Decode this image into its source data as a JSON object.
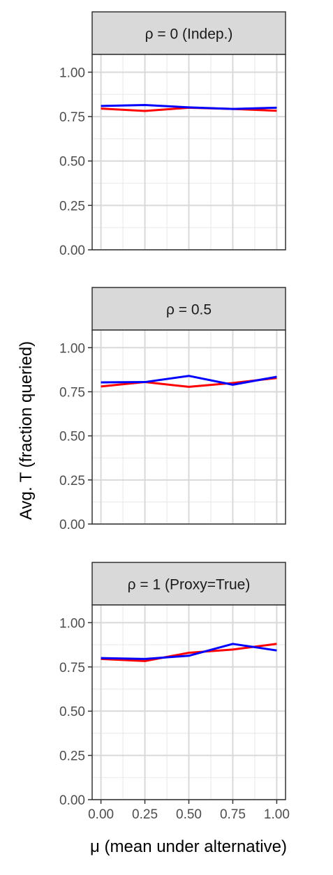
{
  "chart_data": [
    {
      "type": "line",
      "facet_label": "ρ = 0 (Indep.)",
      "x": [
        0.0,
        0.25,
        0.5,
        0.75,
        1.0
      ],
      "series": [
        {
          "color": "#ff0000",
          "values": [
            0.795,
            0.782,
            0.8,
            0.793,
            0.783
          ]
        },
        {
          "color": "#0000ff",
          "values": [
            0.81,
            0.815,
            0.802,
            0.793,
            0.8
          ]
        }
      ],
      "ylim": [
        0,
        1.1
      ],
      "xlim": [
        -0.05,
        1.05
      ]
    },
    {
      "type": "line",
      "facet_label": "ρ = 0.5",
      "x": [
        0.0,
        0.25,
        0.5,
        0.75,
        1.0
      ],
      "series": [
        {
          "color": "#ff0000",
          "values": [
            0.78,
            0.805,
            0.778,
            0.8,
            0.828
          ]
        },
        {
          "color": "#0000ff",
          "values": [
            0.803,
            0.805,
            0.84,
            0.79,
            0.835
          ]
        }
      ],
      "ylim": [
        0,
        1.1
      ],
      "xlim": [
        -0.05,
        1.05
      ]
    },
    {
      "type": "line",
      "facet_label": "ρ = 1 (Proxy=True)",
      "x": [
        0.0,
        0.25,
        0.5,
        0.75,
        1.0
      ],
      "series": [
        {
          "color": "#ff0000",
          "values": [
            0.795,
            0.783,
            0.83,
            0.848,
            0.88
          ]
        },
        {
          "color": "#0000ff",
          "values": [
            0.8,
            0.795,
            0.813,
            0.88,
            0.843
          ]
        }
      ],
      "ylim": [
        0,
        1.1
      ],
      "xlim": [
        -0.05,
        1.05
      ]
    }
  ],
  "y_ticks": [
    "0.00",
    "0.25",
    "0.50",
    "0.75",
    "1.00"
  ],
  "x_ticks": [
    "0.00",
    "0.25",
    "0.50",
    "0.75",
    "1.00"
  ],
  "ylabel": "Avg. T (fraction queried)",
  "xlabel": "μ (mean under alternative)",
  "grid": true,
  "colors": {
    "grid": "#d9d9d9",
    "strip_fill": "#d9d9d9",
    "frame": "#333333",
    "tick_text": "#4d4d4d"
  }
}
